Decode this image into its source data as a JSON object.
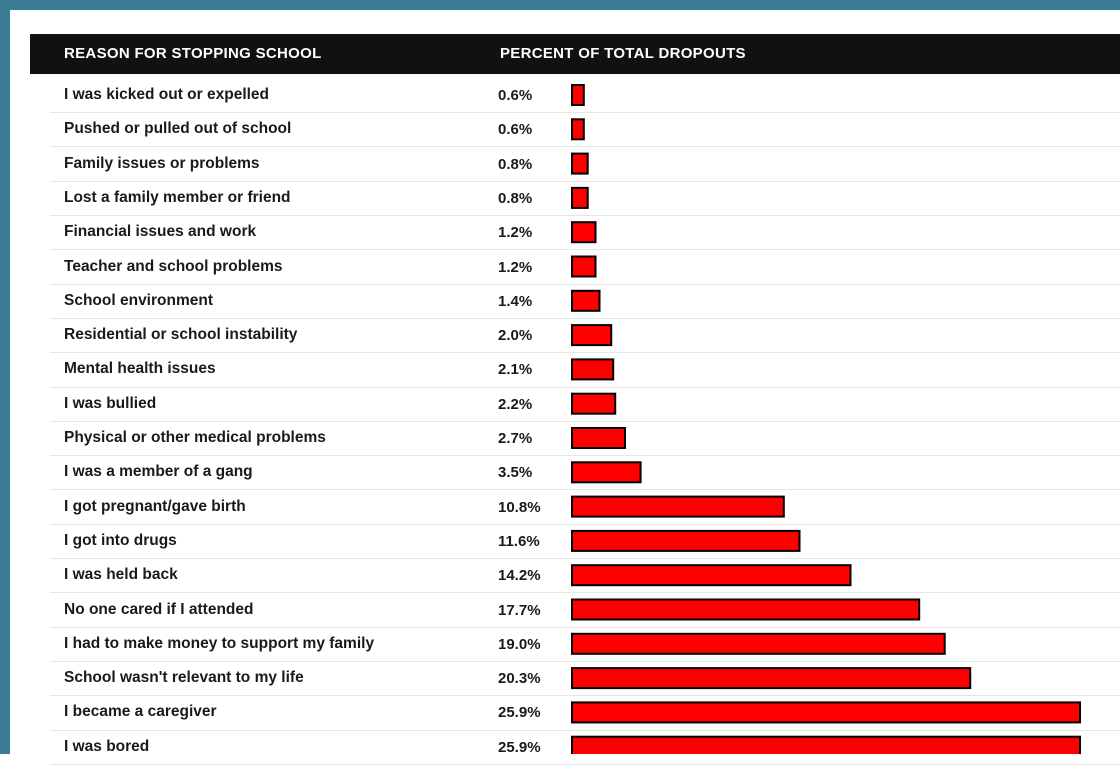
{
  "header": {
    "reason_label": "REASON FOR STOPPING SCHOOL",
    "percent_label": "PERCENT OF TOTAL DROPOUTS"
  },
  "colors": {
    "bar": "#ff0000",
    "bar_border": "#000000",
    "frame": "#3b7c93",
    "header_bg": "#111111"
  },
  "chart_data": {
    "type": "bar",
    "orientation": "horizontal",
    "categories": [
      "I was kicked out or expelled",
      "Pushed or pulled out of school",
      "Family issues or problems",
      "Lost a family member or friend",
      "Financial issues and work",
      "Teacher and school problems",
      "School environment",
      "Residential or school instability",
      "Mental health issues",
      "I was bullied",
      "Physical or other medical problems",
      "I was a member of a gang",
      "I got pregnant/gave birth",
      "I got into drugs",
      "I was held back",
      "No one cared if I attended",
      "I had to make money to support my family",
      "School wasn't relevant to my life",
      "I became a caregiver",
      "I was bored"
    ],
    "values": [
      0.6,
      0.6,
      0.8,
      0.8,
      1.2,
      1.2,
      1.4,
      2.0,
      2.1,
      2.2,
      2.7,
      3.5,
      10.8,
      11.6,
      14.2,
      17.7,
      19.0,
      20.3,
      25.9,
      25.9
    ],
    "value_labels": [
      "0.6%",
      "0.6%",
      "0.8%",
      "0.8%",
      "1.2%",
      "1.2%",
      "1.4%",
      "2.0%",
      "2.1%",
      "2.2%",
      "2.7%",
      "3.5%",
      "10.8%",
      "11.6%",
      "14.2%",
      "17.7%",
      "19.0%",
      "20.3%",
      "25.9%",
      "25.9%"
    ]
  }
}
